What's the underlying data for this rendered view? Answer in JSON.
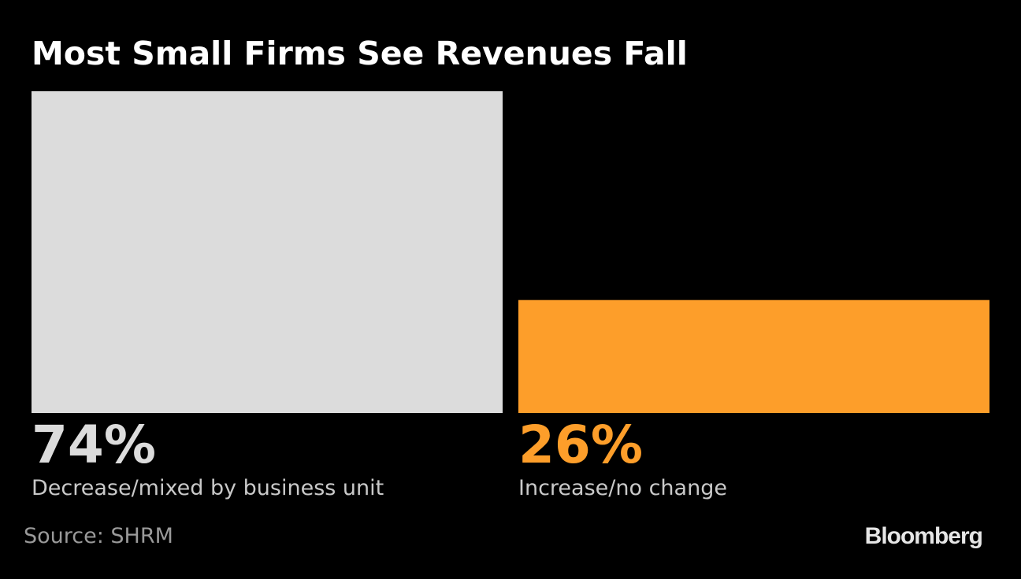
{
  "chart_data": {
    "type": "bar",
    "title": "Most Small Firms See Revenues Fall",
    "categories": [
      "Decrease/mixed by business unit",
      "Increase/no change"
    ],
    "values": [
      74,
      26
    ],
    "value_labels": [
      "74%",
      "26%"
    ],
    "colors": [
      "#dcdcdc",
      "#fd9e2a"
    ],
    "ylim": [
      0,
      74
    ],
    "grid": false,
    "source": "Source: SHRM"
  },
  "brand": "Bloomberg"
}
